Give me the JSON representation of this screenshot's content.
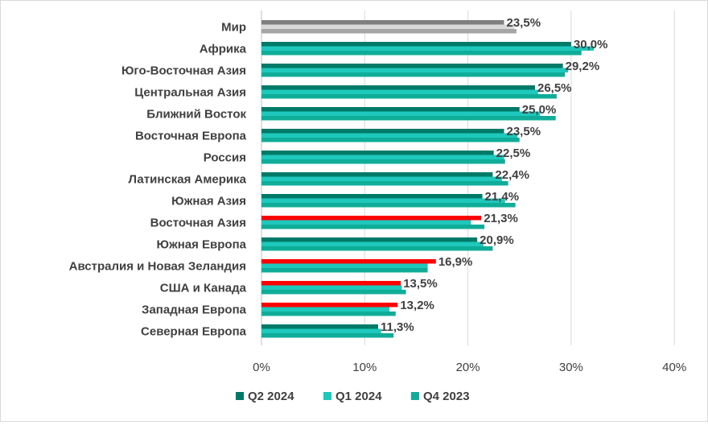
{
  "chart_data": {
    "type": "bar",
    "orientation": "horizontal",
    "title": "",
    "xlabel": "",
    "ylabel": "",
    "categories": [
      "Мир",
      "Африка",
      "Юго-Восточная Азия",
      "Центральная Азия",
      "Ближний Восток",
      "Восточная Европа",
      "Россия",
      "Латинская Америка",
      "Южная Азия",
      "Восточная Азия",
      "Южная Европа",
      "Австралия и Новая Зеландия",
      "США и Канада",
      "Западная Европа",
      "Северная Европа"
    ],
    "series": [
      {
        "name": "Q2 2024",
        "color": "#007a68",
        "values": [
          23.5,
          30.0,
          29.2,
          26.5,
          25.0,
          23.5,
          22.5,
          22.4,
          21.4,
          21.3,
          20.9,
          16.9,
          13.5,
          13.2,
          11.3
        ],
        "labels": [
          "23,5%",
          "30,0%",
          "29,2%",
          "26,5%",
          "25,0%",
          "23,5%",
          "22,5%",
          "22,4%",
          "21,4%",
          "21,3%",
          "20,9%",
          "16,9%",
          "13,5%",
          "13,2%",
          "11,3%"
        ]
      },
      {
        "name": "Q1 2024",
        "color": "#1ec8bc",
        "values": [
          24.5,
          32.2,
          29.7,
          26.8,
          27.0,
          24.8,
          23.5,
          23.3,
          23.6,
          20.3,
          21.5,
          16.1,
          13.6,
          12.4,
          11.6
        ]
      },
      {
        "name": "Q4 2023",
        "color": "#0fad98",
        "values": [
          24.7,
          31.0,
          29.4,
          28.6,
          28.5,
          25.0,
          23.6,
          23.9,
          24.6,
          21.6,
          22.4,
          16.1,
          14.0,
          13.0,
          12.8
        ]
      }
    ],
    "highlight_color": "#ff0000",
    "highlight_categories": [
      "Восточная Азия",
      "Австралия и Новая Зеландия",
      "США и Канада",
      "Западная Европа"
    ],
    "world_colors": [
      "#7f7f7f",
      "#d9d9d9",
      "#a6a6a6"
    ],
    "xlim": [
      0,
      40
    ],
    "xticks": [
      0,
      10,
      20,
      30,
      40
    ],
    "xtick_labels": [
      "0%",
      "10%",
      "20%",
      "30%",
      "40%"
    ],
    "grid": true,
    "legend_position": "bottom"
  }
}
